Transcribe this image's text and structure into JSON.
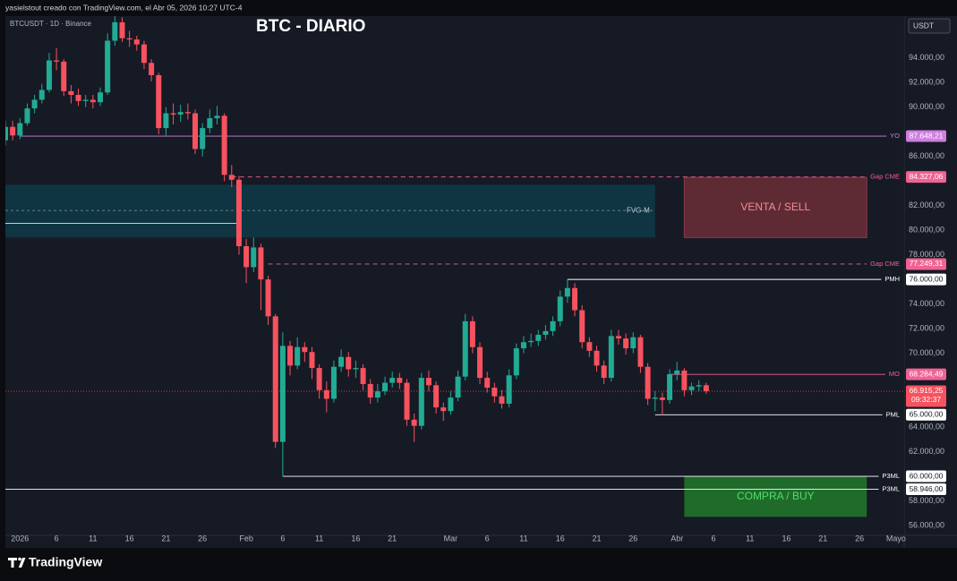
{
  "header": "yasielstout creado con TradingView.com, el Abr 05, 2026 10:27 UTC-4",
  "logo": "TradingView",
  "chart_data": {
    "type": "candlestick",
    "title": "BTC - DIARIO",
    "symbol": "BTCUSDT · 1D · Binance",
    "currency": "USDT",
    "up_color": "#22ab94",
    "down_color": "#f7525f",
    "grid": false,
    "xlim": [
      "2025-12-30",
      "2026-05-02"
    ],
    "ylim": [
      55200,
      97400
    ],
    "yticks": [
      {
        "value": 94000,
        "label": "94.000,00"
      },
      {
        "value": 92000,
        "label": "92.000,00"
      },
      {
        "value": 90000,
        "label": "90.000,00"
      },
      {
        "value": 86000,
        "label": "86.000,00"
      },
      {
        "value": 82000,
        "label": "82.000,00"
      },
      {
        "value": 80000,
        "label": "80.000,00"
      },
      {
        "value": 78000,
        "label": "78.000,00"
      },
      {
        "value": 74000,
        "label": "74.000,00"
      },
      {
        "value": 72000,
        "label": "72.000,00"
      },
      {
        "value": 70000,
        "label": "70.000,00"
      },
      {
        "value": 64000,
        "label": "64.000,00"
      },
      {
        "value": 62000,
        "label": "62.000,00"
      },
      {
        "value": 58000,
        "label": "58.000,00"
      },
      {
        "value": 56000,
        "label": "56.000,00"
      }
    ],
    "xticks": [
      {
        "value": "2026-01-01",
        "label": "2026"
      },
      {
        "value": "2026-01-06",
        "label": "6"
      },
      {
        "value": "2026-01-11",
        "label": "11"
      },
      {
        "value": "2026-01-16",
        "label": "16"
      },
      {
        "value": "2026-01-21",
        "label": "21"
      },
      {
        "value": "2026-01-26",
        "label": "26"
      },
      {
        "value": "2026-02-01",
        "label": "Feb"
      },
      {
        "value": "2026-02-06",
        "label": "6"
      },
      {
        "value": "2026-02-11",
        "label": "11"
      },
      {
        "value": "2026-02-16",
        "label": "16"
      },
      {
        "value": "2026-02-21",
        "label": "21"
      },
      {
        "value": "2026-03-01",
        "label": "Mar"
      },
      {
        "value": "2026-03-06",
        "label": "6"
      },
      {
        "value": "2026-03-11",
        "label": "11"
      },
      {
        "value": "2026-03-16",
        "label": "16"
      },
      {
        "value": "2026-03-21",
        "label": "21"
      },
      {
        "value": "2026-03-26",
        "label": "26"
      },
      {
        "value": "2026-04-01",
        "label": "Abr"
      },
      {
        "value": "2026-04-06",
        "label": "6"
      },
      {
        "value": "2026-04-11",
        "label": "11"
      },
      {
        "value": "2026-04-16",
        "label": "16"
      },
      {
        "value": "2026-04-21",
        "label": "21"
      },
      {
        "value": "2026-04-26",
        "label": "26"
      },
      {
        "value": "2026-05-01",
        "label": "Mayo"
      }
    ],
    "x": [
      "2025-12-30",
      "2025-12-31",
      "2026-01-01",
      "2026-01-02",
      "2026-01-03",
      "2026-01-04",
      "2026-01-05",
      "2026-01-06",
      "2026-01-07",
      "2026-01-08",
      "2026-01-09",
      "2026-01-10",
      "2026-01-11",
      "2026-01-12",
      "2026-01-13",
      "2026-01-14",
      "2026-01-15",
      "2026-01-16",
      "2026-01-17",
      "2026-01-18",
      "2026-01-19",
      "2026-01-20",
      "2026-01-21",
      "2026-01-22",
      "2026-01-23",
      "2026-01-24",
      "2026-01-25",
      "2026-01-26",
      "2026-01-27",
      "2026-01-28",
      "2026-01-29",
      "2026-01-30",
      "2026-01-31",
      "2026-02-01",
      "2026-02-02",
      "2026-02-03",
      "2026-02-04",
      "2026-02-05",
      "2026-02-06",
      "2026-02-07",
      "2026-02-08",
      "2026-02-09",
      "2026-02-10",
      "2026-02-11",
      "2026-02-12",
      "2026-02-13",
      "2026-02-14",
      "2026-02-15",
      "2026-02-16",
      "2026-02-17",
      "2026-02-18",
      "2026-02-19",
      "2026-02-20",
      "2026-02-21",
      "2026-02-22",
      "2026-02-23",
      "2026-02-24",
      "2026-02-25",
      "2026-02-26",
      "2026-02-27",
      "2026-02-28",
      "2026-03-01",
      "2026-03-02",
      "2026-03-03",
      "2026-03-04",
      "2026-03-05",
      "2026-03-06",
      "2026-03-07",
      "2026-03-08",
      "2026-03-09",
      "2026-03-10",
      "2026-03-11",
      "2026-03-12",
      "2026-03-13",
      "2026-03-14",
      "2026-03-15",
      "2026-03-16",
      "2026-03-17",
      "2026-03-18",
      "2026-03-19",
      "2026-03-20",
      "2026-03-21",
      "2026-03-22",
      "2026-03-23",
      "2026-03-24",
      "2026-03-25",
      "2026-03-26",
      "2026-03-27",
      "2026-03-28",
      "2026-03-29",
      "2026-03-30",
      "2026-03-31",
      "2026-04-01",
      "2026-04-02",
      "2026-04-03",
      "2026-04-04",
      "2026-04-05"
    ],
    "open": [
      87300,
      88400,
      87700,
      88700,
      89900,
      90600,
      91400,
      93800,
      93700,
      91300,
      91000,
      90500,
      90600,
      90400,
      91200,
      95400,
      96900,
      95600,
      95500,
      95100,
      93600,
      92600,
      88300,
      89500,
      89400,
      89600,
      89500,
      86600,
      88300,
      89100,
      89300,
      84500,
      84100,
      78700,
      77000,
      78600,
      76000,
      73000,
      62800,
      70600,
      69000,
      70500,
      70100,
      68800,
      67000,
      66300,
      68900,
      69700,
      68700,
      68800,
      67500,
      66400,
      66900,
      67600,
      68000,
      67600,
      64600,
      64100,
      68000,
      67400,
      65600,
      65300,
      66400,
      68100,
      72600,
      70500,
      68000,
      67200,
      66500,
      65900,
      68200,
      70400,
      70900,
      71000,
      71500,
      71800,
      72600,
      74600,
      75300,
      73500,
      70900,
      70200,
      69000,
      68000,
      71400,
      71200,
      70400,
      71300,
      68900,
      66300,
      66400,
      66200,
      68300,
      68600,
      67000,
      67300,
      67400
    ],
    "high": [
      88900,
      88900,
      89100,
      90300,
      91000,
      91900,
      94400,
      94800,
      93900,
      91800,
      91500,
      91000,
      91000,
      91600,
      96000,
      97900,
      97300,
      96200,
      95800,
      95400,
      93900,
      92800,
      90000,
      90300,
      90200,
      90300,
      89800,
      88700,
      89800,
      90100,
      89500,
      85300,
      84400,
      79300,
      79400,
      78900,
      76300,
      73200,
      71700,
      71000,
      71300,
      70900,
      70500,
      69100,
      67700,
      69400,
      70300,
      70100,
      69400,
      69100,
      67900,
      67500,
      68100,
      68500,
      68400,
      67900,
      65100,
      68400,
      68600,
      67700,
      66000,
      66900,
      68600,
      73200,
      73000,
      70900,
      68500,
      67600,
      67000,
      68700,
      70800,
      71400,
      71600,
      71900,
      72300,
      73000,
      75100,
      76000,
      75700,
      73900,
      71300,
      70600,
      69400,
      71900,
      71900,
      71600,
      71700,
      71500,
      69200,
      66900,
      66800,
      68700,
      69300,
      68800,
      67600,
      67800,
      67600
    ],
    "low": [
      86900,
      87300,
      87400,
      88500,
      89500,
      90300,
      91200,
      93000,
      90900,
      90300,
      90100,
      90000,
      89900,
      90100,
      91000,
      95000,
      95300,
      94900,
      94600,
      93100,
      92100,
      87800,
      87700,
      88600,
      88800,
      89000,
      86200,
      86000,
      87900,
      88600,
      84000,
      83500,
      78000,
      75700,
      76600,
      73500,
      72300,
      62300,
      60000,
      68200,
      68700,
      69300,
      67900,
      66300,
      65200,
      66000,
      68500,
      68100,
      68000,
      67000,
      65900,
      66000,
      66600,
      67200,
      67100,
      64100,
      62800,
      63800,
      66900,
      65100,
      64500,
      65000,
      66100,
      67800,
      70000,
      67500,
      66800,
      66000,
      65500,
      65600,
      67900,
      70000,
      70500,
      70600,
      71100,
      71400,
      72200,
      74100,
      73000,
      70400,
      69700,
      68500,
      67500,
      67700,
      70700,
      69900,
      70000,
      68400,
      65800,
      65300,
      65000,
      65900,
      67800,
      66500,
      66600,
      66900,
      66700
    ],
    "close": [
      88400,
      87700,
      88700,
      89900,
      90600,
      91400,
      93800,
      93700,
      91300,
      91000,
      90500,
      90600,
      90400,
      91200,
      95400,
      96900,
      95600,
      95500,
      95100,
      93600,
      92600,
      88300,
      89500,
      89400,
      89600,
      89500,
      86600,
      88300,
      89100,
      89300,
      84500,
      84100,
      78700,
      77000,
      78600,
      76000,
      73000,
      62800,
      70600,
      69000,
      70500,
      70100,
      68800,
      67000,
      66300,
      68900,
      69700,
      68700,
      68800,
      67500,
      66400,
      66900,
      67600,
      68000,
      67600,
      64600,
      64100,
      68000,
      67400,
      65600,
      65300,
      66400,
      68100,
      72600,
      70500,
      68000,
      67200,
      66500,
      65900,
      68200,
      70400,
      70900,
      71000,
      71500,
      71800,
      72600,
      74600,
      75300,
      73500,
      70900,
      70200,
      69000,
      68000,
      71400,
      71200,
      70400,
      71300,
      68900,
      66300,
      66400,
      66200,
      68300,
      68600,
      67000,
      67300,
      67400,
      66915.25
    ],
    "last_label": "66.915,25",
    "countdown": "09:32:37",
    "levels": [
      {
        "name": "YO",
        "value": 87648.21,
        "value_label": "87.648,21",
        "color": "#cf7fe0",
        "style": "solid",
        "from": "2026-01-01"
      },
      {
        "name": "Gap CME",
        "value": 84327.06,
        "value_label": "84.327,06",
        "color": "#f06292",
        "style": "dashed",
        "from": "2026-01-30"
      },
      {
        "value": 80550,
        "color": "#e0e3eb",
        "style": "solid",
        "from": "2025-12-30",
        "to": "2026-01-31"
      },
      {
        "name": "Gap CME",
        "value": 77249.31,
        "value_label": "77.249,31",
        "color": "#f06292",
        "style": "dashed",
        "from": "2026-02-04"
      },
      {
        "name": "PMH",
        "value": 76000,
        "value_label": "76.000,00",
        "color": "#ffffff",
        "style": "solid",
        "from": "2026-03-17"
      },
      {
        "name": "MO",
        "value": 68284.49,
        "value_label": "68.284,49",
        "color": "#f06292",
        "style": "solid",
        "from": "2026-03-31"
      },
      {
        "name": "PML",
        "value": 65000,
        "value_label": "65.000,00",
        "color": "#ffffff",
        "style": "solid",
        "from": "2026-03-29"
      },
      {
        "name": "P3ML",
        "value": 60000,
        "value_label": "60.000,00",
        "color": "#ffffff",
        "style": "solid",
        "from": "2026-02-06"
      },
      {
        "name": "P3ML",
        "value": 58946,
        "value_label": "58.946,00",
        "color": "#ffffff",
        "style": "solid",
        "from": "2025-12-30"
      }
    ],
    "zones": [
      {
        "label": "FVG-M",
        "range": [
          79400,
          83700
        ],
        "mid": 81600,
        "x_range": [
          "2025-12-30",
          "2026-03-29"
        ],
        "fill": "#0f3442",
        "text_color": "#c7ccd6",
        "label_position": "right"
      },
      {
        "label": "VENTA / SELL",
        "range": [
          79400,
          84300
        ],
        "x_range": [
          "2026-04-02",
          "2026-04-27"
        ],
        "fill": "#5e2b34",
        "stroke": "#8a3a46",
        "text_color": "#f28b96",
        "label_position": "center"
      },
      {
        "label": "COMPRA / BUY",
        "range": [
          56700,
          60000
        ],
        "x_range": [
          "2026-04-02",
          "2026-04-27"
        ],
        "fill": "#1f6b2a",
        "text_color": "#4fdc6a",
        "label_position": "center"
      }
    ]
  }
}
